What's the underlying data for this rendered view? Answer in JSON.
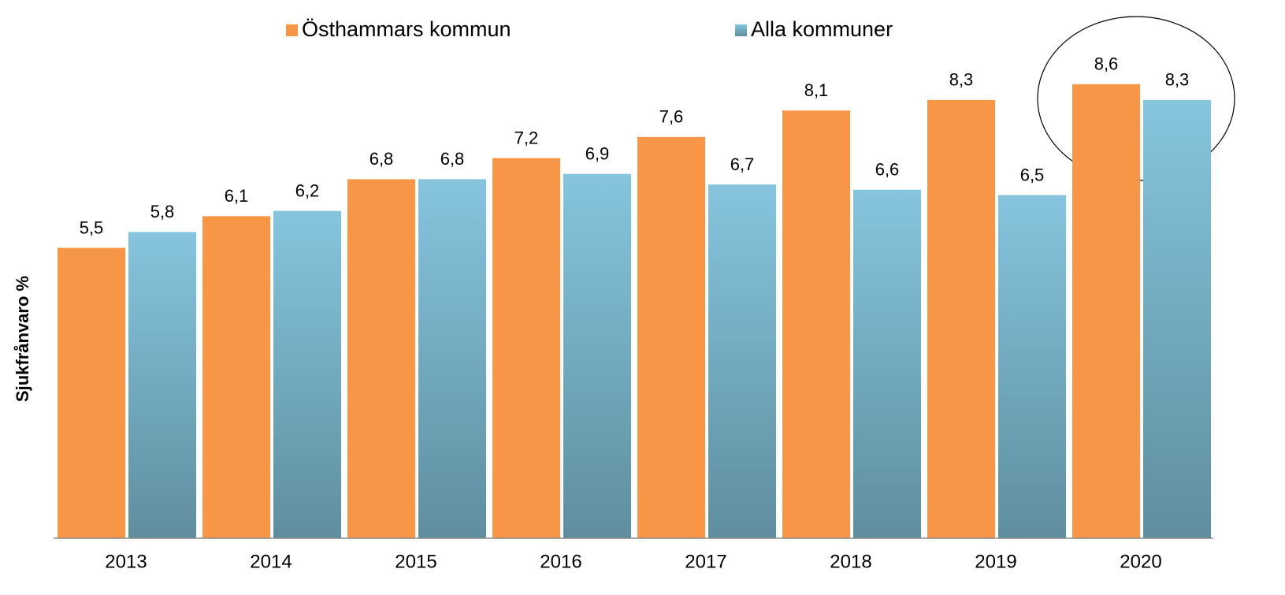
{
  "chart_data": {
    "type": "bar",
    "y_label": "Sjukfrånvaro %",
    "categories": [
      "2013",
      "2014",
      "2015",
      "2016",
      "2017",
      "2018",
      "2019",
      "2020"
    ],
    "series": [
      {
        "name": "Östhammars kommun",
        "color": "#f79646",
        "values": [
          5.5,
          6.1,
          6.8,
          7.2,
          7.6,
          8.1,
          8.3,
          8.6
        ],
        "value_labels": [
          "5,5",
          "6,1",
          "6,8",
          "7,2",
          "7,6",
          "8,1",
          "8,3",
          "8,6"
        ]
      },
      {
        "name": "Alla kommuner",
        "color": "#86c5de",
        "values": [
          5.8,
          6.2,
          6.8,
          6.9,
          6.7,
          6.6,
          6.5,
          8.3
        ],
        "value_labels": [
          "5,8",
          "6,2",
          "6,8",
          "6,9",
          "6,7",
          "6,6",
          "6,5",
          "8,3"
        ]
      }
    ],
    "ylim": [
      0,
      10
    ]
  }
}
